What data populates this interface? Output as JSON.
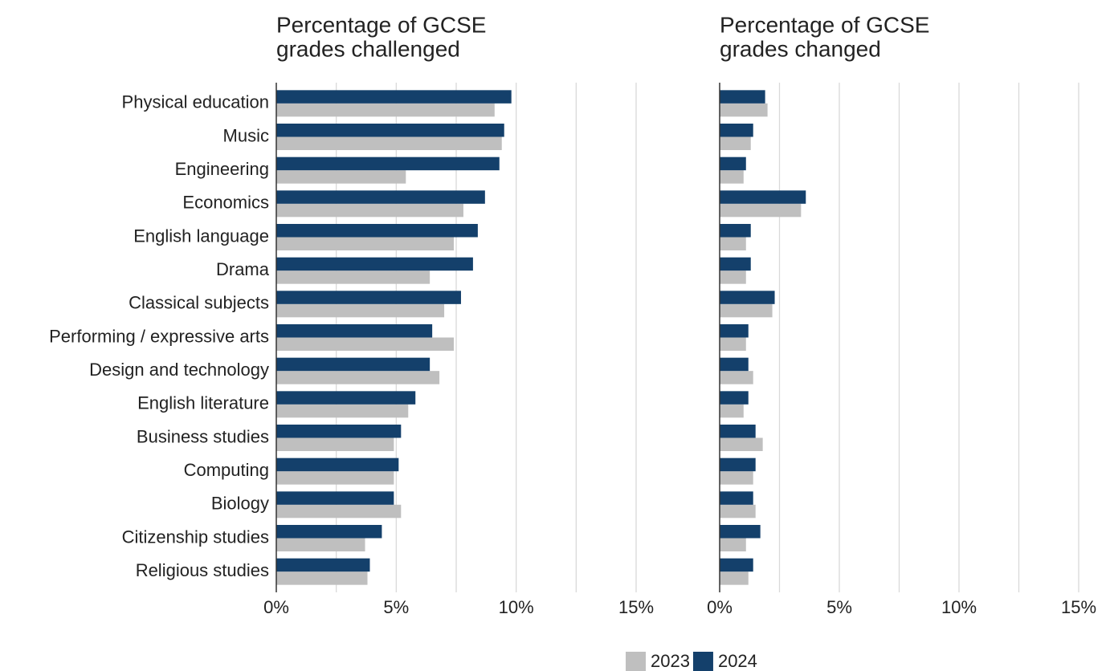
{
  "chart_data": [
    {
      "type": "bar",
      "orientation": "horizontal",
      "title": [
        "Percentage of GCSE",
        "grades challenged"
      ],
      "categories": [
        "Physical education",
        "Music",
        "Engineering",
        "Economics",
        "English language",
        "Drama",
        "Classical subjects",
        "Performing / expressive arts",
        "Design and technology",
        "English literature",
        "Business studies",
        "Computing",
        "Biology",
        "Citizenship studies",
        "Religious studies"
      ],
      "series": [
        {
          "name": "2023",
          "color": "#bfbfbf",
          "values": [
            9.1,
            9.4,
            5.4,
            7.8,
            7.4,
            6.4,
            7.0,
            7.4,
            6.8,
            5.5,
            4.9,
            4.9,
            5.2,
            3.7,
            3.8
          ]
        },
        {
          "name": "2024",
          "color": "#14406b",
          "values": [
            9.8,
            9.5,
            9.3,
            8.7,
            8.4,
            8.2,
            7.7,
            6.5,
            6.4,
            5.8,
            5.2,
            5.1,
            4.9,
            4.4,
            3.9
          ]
        }
      ],
      "xlim": [
        0,
        15
      ],
      "xticks": [
        {
          "value": 0,
          "label": "0%"
        },
        {
          "value": 5,
          "label": "5%"
        },
        {
          "value": 10,
          "label": "10%"
        },
        {
          "value": 15,
          "label": "15%"
        }
      ],
      "minor_xticks": [
        2.5,
        7.5,
        12.5
      ],
      "grid": true,
      "legend": "bottom"
    },
    {
      "type": "bar",
      "orientation": "horizontal",
      "title": [
        "Percentage of GCSE",
        "grades changed"
      ],
      "series": [
        {
          "color": "#bfbfbf",
          "values": [
            2.0,
            1.3,
            1.0,
            3.4,
            1.1,
            1.1,
            2.2,
            1.1,
            1.4,
            1.0,
            1.8,
            1.4,
            1.5,
            1.1,
            1.2
          ]
        },
        {
          "color": "#14406b",
          "values": [
            1.9,
            1.4,
            1.1,
            3.6,
            1.3,
            1.3,
            2.3,
            1.2,
            1.2,
            1.2,
            1.5,
            1.5,
            1.4,
            1.7,
            1.4
          ]
        }
      ],
      "xlim": [
        0,
        15
      ],
      "xticks": [
        {
          "value": 0,
          "label": "0%"
        },
        {
          "value": 5,
          "label": "5%"
        },
        {
          "value": 10,
          "label": "10%"
        },
        {
          "value": 15,
          "label": "15%"
        }
      ],
      "minor_xticks": [
        2.5,
        7.5,
        12.5
      ],
      "grid": true
    }
  ]
}
